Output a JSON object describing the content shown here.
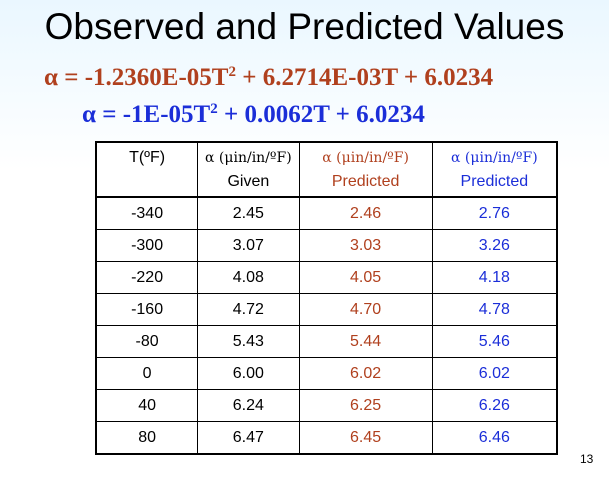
{
  "slide": {
    "title": "Observed and Predicted Values",
    "page_number": "13"
  },
  "equations": [
    {
      "prefix": "α = -1.2360E-05T",
      "sup": "2",
      "suffix": " + 6.2714E-03T + 6.0234",
      "color": "#b0401e"
    },
    {
      "prefix": "α = -1E-05T",
      "sup": "2",
      "suffix": " + 0.0062T + 6.0234",
      "color": "#1b2ed8"
    }
  ],
  "colors": {
    "predicted_brown": "#b0401e",
    "predicted_blue": "#1b2ed8",
    "given": "#000000"
  },
  "table": {
    "headers": [
      {
        "line1": "T(ºF)",
        "line2": ""
      },
      {
        "line1": "α (μin/in/ºF)",
        "line2": "Given"
      },
      {
        "line1": "α (μin/in/ºF)",
        "line2": "Predicted"
      },
      {
        "line1": "α (μin/in/ºF)",
        "line2": "Predicted"
      }
    ],
    "rows": [
      [
        "-340",
        "2.45",
        "2.46",
        "2.76"
      ],
      [
        "-300",
        "3.07",
        "3.03",
        "3.26"
      ],
      [
        "-220",
        "4.08",
        "4.05",
        "4.18"
      ],
      [
        "-160",
        "4.72",
        "4.70",
        "4.78"
      ],
      [
        "-80",
        "5.43",
        "5.44",
        "5.46"
      ],
      [
        "0",
        "6.00",
        "6.02",
        "6.02"
      ],
      [
        "40",
        "6.24",
        "6.25",
        "6.26"
      ],
      [
        "80",
        "6.47",
        "6.45",
        "6.46"
      ]
    ]
  }
}
